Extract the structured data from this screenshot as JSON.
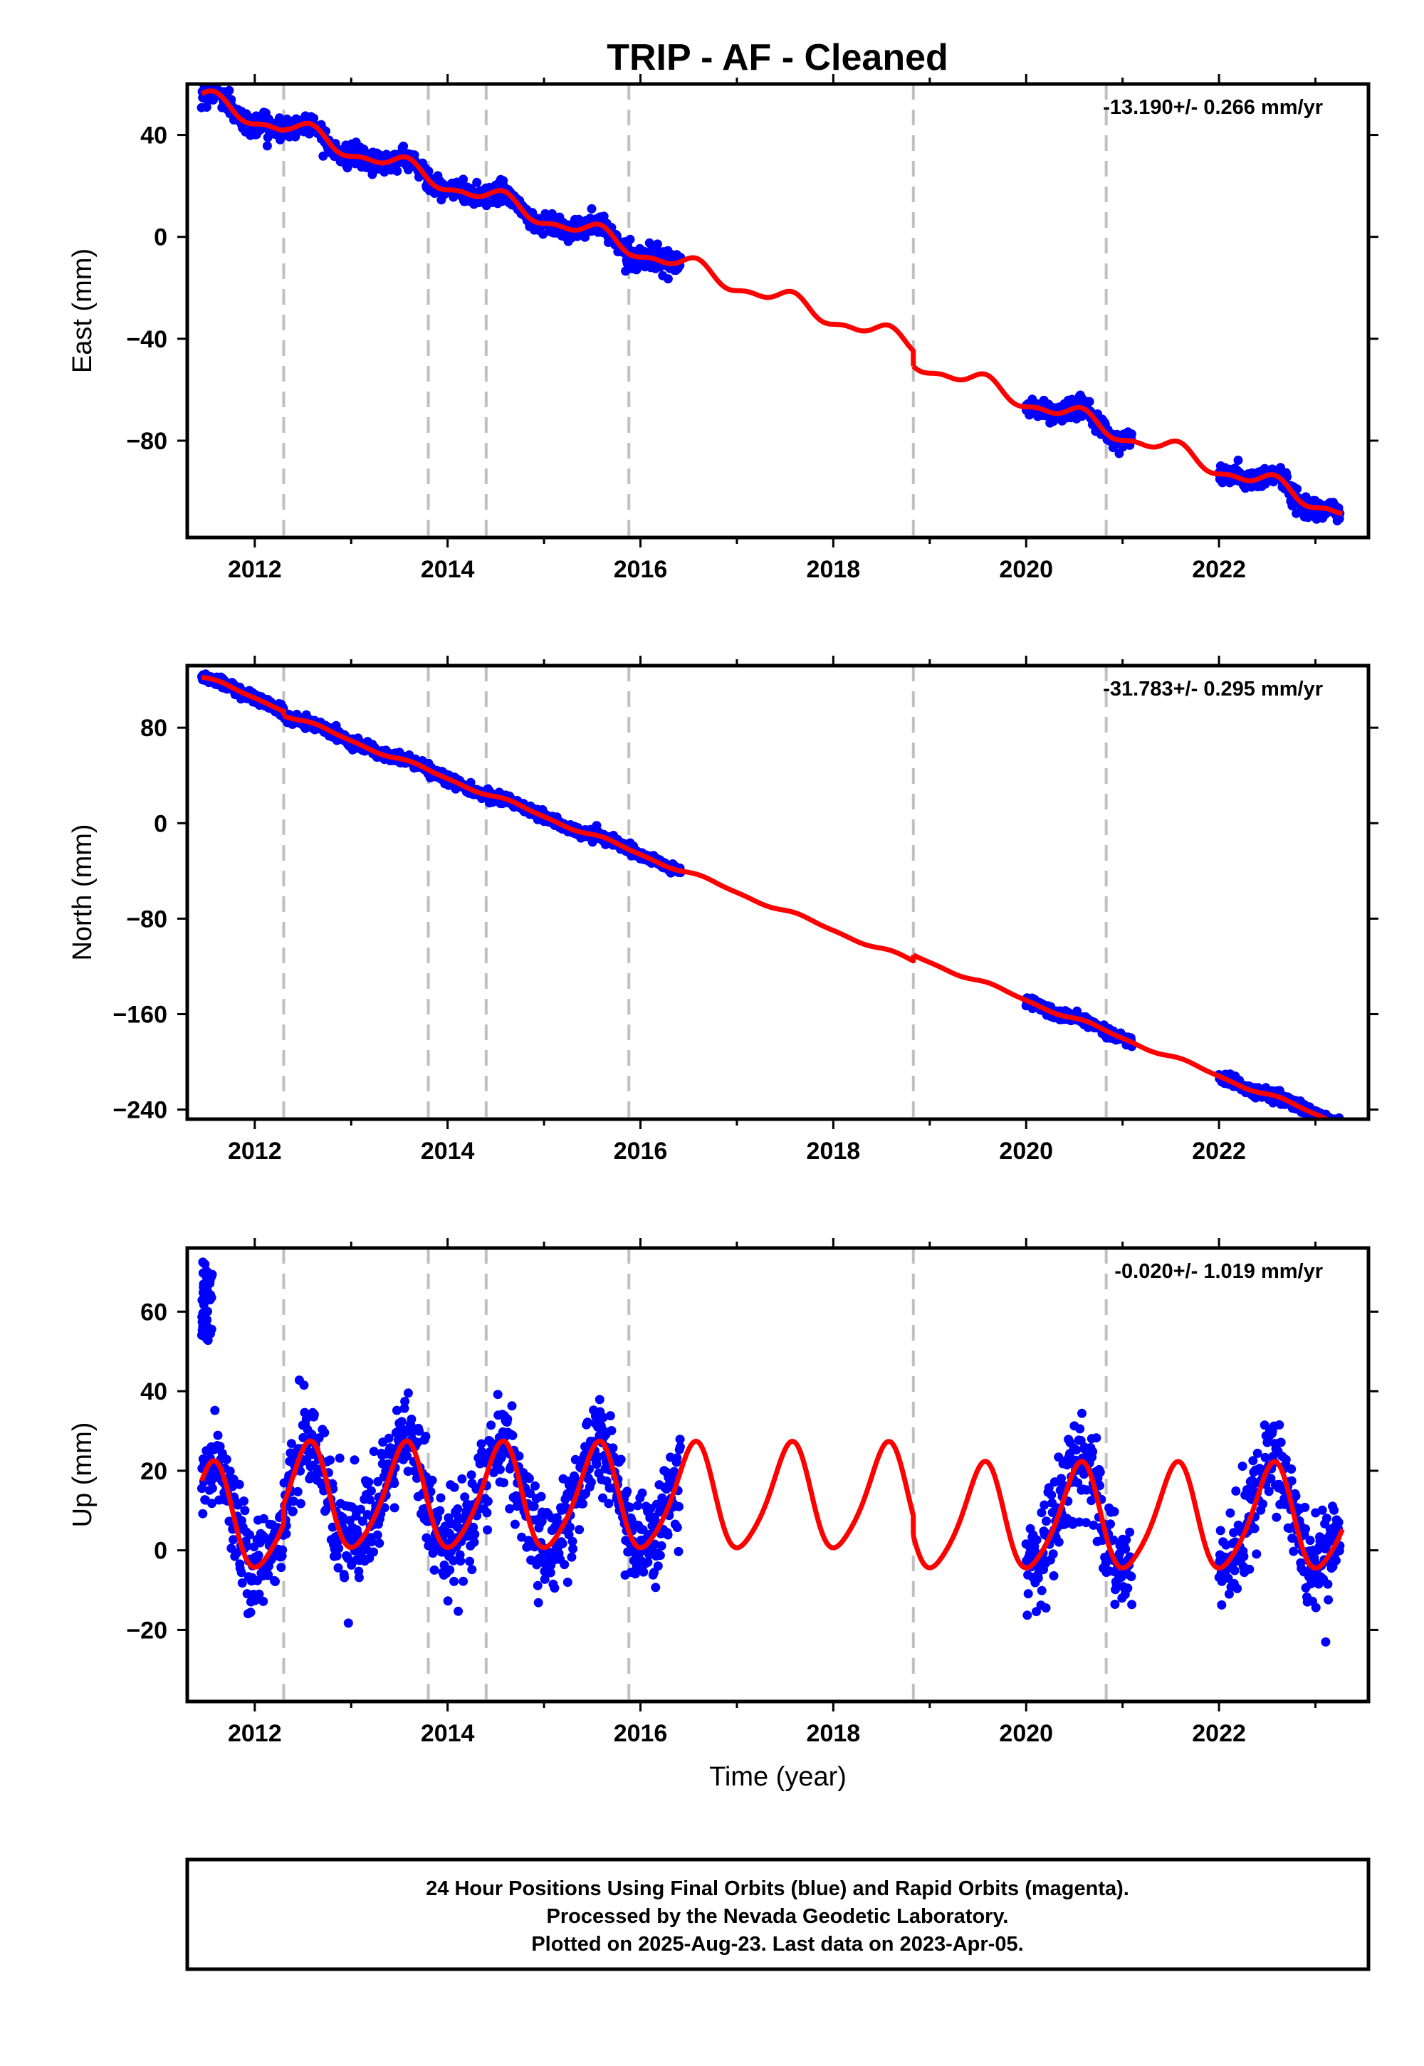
{
  "title": "TRIP  - AF - Cleaned",
  "colors": {
    "final_orbits": "#0000ff",
    "model": "#ff0000",
    "event_lines": "#c0c0c0",
    "frame": "#000000"
  },
  "chart_data": [
    {
      "type": "scatter",
      "component": "East",
      "ylabel": "East (mm)",
      "xlabel": "",
      "xlim": [
        2011.3,
        2023.55
      ],
      "ylim": [
        -118,
        60
      ],
      "x_ticks": [
        2012,
        2014,
        2016,
        2018,
        2020,
        2022
      ],
      "y_ticks": [
        40,
        0,
        -40,
        -80
      ],
      "y_tick_labels": [
        "40",
        "0",
        "−40",
        "−80"
      ],
      "rate_label": "-13.190+/- 0.266 mm/yr",
      "rate_mm_per_yr": -13.19,
      "rate_sigma": 0.266,
      "data_segments": [
        [
          2011.45,
          2016.42
        ],
        [
          2020.0,
          2021.1
        ],
        [
          2022.0,
          2023.26
        ]
      ],
      "events": [
        2012.3,
        2013.8,
        2014.4,
        2015.88,
        2018.83,
        2020.83
      ],
      "model": {
        "anchor_year": 2011.5,
        "anchor_value": 53.5,
        "rate": -13.19,
        "annual_amp": 3.2,
        "annual_phase_year": 2011.55,
        "semiannual_amp": 1.5,
        "semiannual_phase_year": 2011.6,
        "offsets": [
          {
            "year": 2012.3,
            "value": 0.5
          },
          {
            "year": 2018.83,
            "value": -6.0
          }
        ]
      },
      "scatter_noise": 2.0
    },
    {
      "type": "scatter",
      "component": "North",
      "ylabel": "North (mm)",
      "xlabel": "",
      "xlim": [
        2011.3,
        2023.55
      ],
      "ylim": [
        -248,
        132
      ],
      "x_ticks": [
        2012,
        2014,
        2016,
        2018,
        2020,
        2022
      ],
      "y_ticks": [
        80,
        0,
        -80,
        -160,
        -240
      ],
      "y_tick_labels": [
        "80",
        "0",
        "−80",
        "−160",
        "−240"
      ],
      "rate_label": "-31.783+/- 0.295 mm/yr",
      "rate_mm_per_yr": -31.783,
      "rate_sigma": 0.295,
      "data_segments": [
        [
          2011.45,
          2016.42
        ],
        [
          2020.0,
          2021.1
        ],
        [
          2022.0,
          2023.26
        ]
      ],
      "events": [
        2012.3,
        2013.8,
        2014.4,
        2015.88,
        2018.83,
        2020.83
      ],
      "model": {
        "anchor_year": 2011.5,
        "anchor_value": 121.0,
        "rate": -31.783,
        "annual_amp": 1.6,
        "annual_phase_year": 2011.7,
        "semiannual_amp": 0.6,
        "semiannual_phase_year": 2011.6,
        "offsets": [
          {
            "year": 2012.3,
            "value": -4.0
          },
          {
            "year": 2018.83,
            "value": 5.0
          }
        ]
      },
      "scatter_noise": 2.2
    },
    {
      "type": "scatter",
      "component": "Up",
      "ylabel": "Up (mm)",
      "xlabel": "Time (year)",
      "xlim": [
        2011.3,
        2023.55
      ],
      "ylim": [
        -38,
        76
      ],
      "x_ticks": [
        2012,
        2014,
        2016,
        2018,
        2020,
        2022
      ],
      "y_ticks": [
        60,
        40,
        20,
        0,
        -20
      ],
      "y_tick_labels": [
        "60",
        "40",
        "20",
        "0",
        "−20"
      ],
      "rate_label": "-0.020+/- 1.019 mm/yr",
      "rate_mm_per_yr": -0.02,
      "rate_sigma": 1.019,
      "data_segments": [
        [
          2011.45,
          2016.42
        ],
        [
          2020.0,
          2021.1
        ],
        [
          2022.0,
          2023.26
        ]
      ],
      "events": [
        2012.3,
        2013.8,
        2014.4,
        2015.88,
        2018.83,
        2020.83
      ],
      "model": {
        "anchor_year": 2011.5,
        "anchor_value": 8.0,
        "rate": -0.02,
        "annual_amp": 13.0,
        "annual_phase_year": 2011.55,
        "semiannual_amp": 2.0,
        "semiannual_phase_year": 2011.62,
        "offsets": [
          {
            "year": 2012.3,
            "value": 5.0
          },
          {
            "year": 2018.83,
            "value": -5.0
          }
        ]
      },
      "scatter_noise": 6.0,
      "outliers": {
        "x_range": [
          2011.45,
          2011.56
        ],
        "y_range": [
          52,
          73
        ],
        "count": 45
      }
    }
  ],
  "footer": {
    "line1": "24 Hour Positions Using Final Orbits (blue) and Rapid Orbits (magenta).",
    "line2": "Processed by the Nevada Geodetic Laboratory.",
    "line3": "Plotted on 2025-Aug-23. Last data on 2023-Apr-05."
  }
}
